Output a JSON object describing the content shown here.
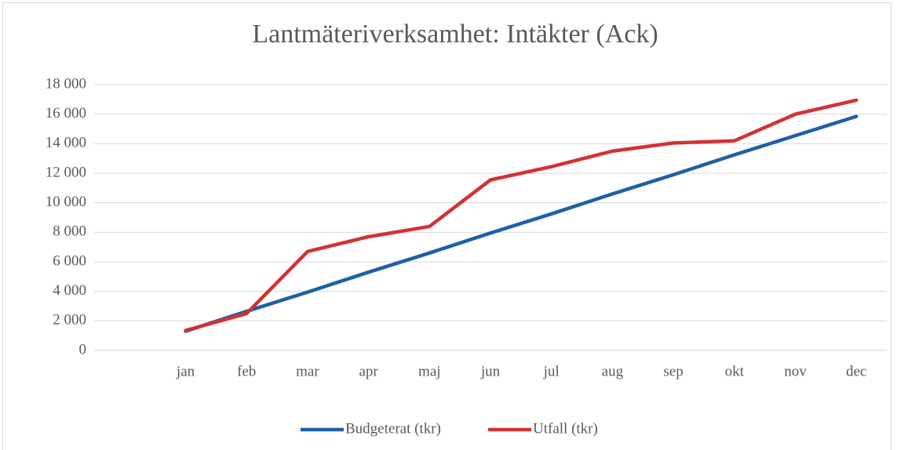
{
  "chart_data": {
    "type": "line",
    "title": "Lantmäteriverksamhet: Intäkter (Ack)",
    "categories": [
      null,
      "jan",
      "feb",
      "mar",
      "apr",
      "maj",
      "jun",
      "jul",
      "aug",
      "sep",
      "okt",
      "nov",
      "dec"
    ],
    "series": [
      {
        "name": "Budgeterat (tkr)",
        "color": "#1f5fa6",
        "values": [
          null,
          1300,
          2650,
          3950,
          5300,
          6600,
          7950,
          9250,
          10600,
          11900,
          13250,
          14550,
          15850
        ]
      },
      {
        "name": "Utfall (tkr)",
        "color": "#d23235",
        "values": [
          null,
          1350,
          2500,
          6700,
          7700,
          8400,
          11550,
          12450,
          13500,
          14050,
          14200,
          16000,
          16950
        ]
      }
    ],
    "ylim": [
      0,
      18000
    ],
    "yticks": [
      0,
      {
        "value": 2000,
        "label": "2 000"
      },
      {
        "value": 4000,
        "label": "4 000"
      },
      {
        "value": 6000,
        "label": "6 000"
      },
      {
        "value": 8000,
        "label": "8 000"
      },
      {
        "value": 10000,
        "label": "10 000"
      },
      {
        "value": 12000,
        "label": "12 000"
      },
      {
        "value": 14000,
        "label": "14 000"
      },
      {
        "value": 16000,
        "label": "16 000"
      },
      {
        "value": 18000,
        "label": "18 000"
      }
    ],
    "grid": true,
    "legend": "bottom"
  }
}
